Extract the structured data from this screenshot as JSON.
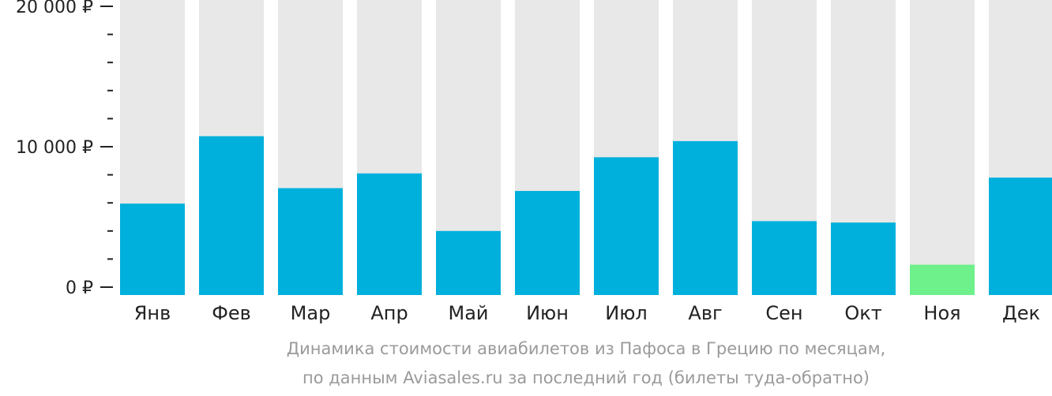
{
  "chart_data": {
    "type": "bar",
    "categories": [
      "Янв",
      "Фев",
      "Мар",
      "Апр",
      "Май",
      "Июн",
      "Июл",
      "Авг",
      "Сен",
      "Окт",
      "Ноя",
      "Дек"
    ],
    "values": [
      5950,
      10750,
      7050,
      8100,
      4000,
      6850,
      9250,
      10400,
      4700,
      4600,
      1600,
      7800
    ],
    "highlight_index": 10,
    "ylim": [
      0,
      20000
    ],
    "yticks": [
      {
        "value": 0,
        "label": "0 ₽"
      },
      {
        "value": 10000,
        "label": "10 000 ₽"
      },
      {
        "value": 20000,
        "label": "20 000 ₽"
      }
    ],
    "minor_tick_step": 2000,
    "colors": {
      "bar": "#00b0dc",
      "highlight": "#6ef08a",
      "background_column": "#e8e8e8",
      "axis": "#222222"
    }
  },
  "caption": {
    "line1": "Динамика стоимости авиабилетов из Пафоса в Грецию по месяцам,",
    "line2": "по данным Aviasales.ru за последний год (билеты туда-обратно)"
  }
}
